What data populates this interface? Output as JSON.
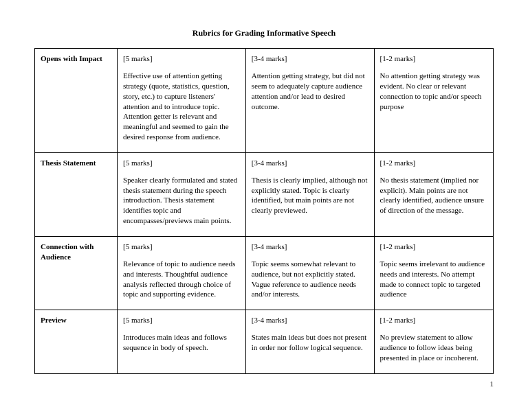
{
  "title": "Rubrics for Grading Informative Speech",
  "page_number": "1",
  "columns": {
    "high_marks": "[5 marks]",
    "mid_marks": "[3-4 marks]",
    "low_marks": "[1-2 marks]"
  },
  "rows": [
    {
      "criterion": "Opens with Impact",
      "high": "Effective use of attention getting strategy (quote, statistics, question, story, etc.) to capture listeners' attention and to introduce topic. Attention getter is relevant and meaningful and seemed to gain the desired response from audience.",
      "mid": "Attention getting strategy, but did not seem to adequately capture audience attention and/or lead to desired outcome.",
      "low": "No attention getting strategy was evident. No clear or relevant connection to topic and/or speech purpose"
    },
    {
      "criterion": "Thesis Statement",
      "high": "Speaker clearly formulated and stated thesis statement during the speech introduction. Thesis statement identifies topic and encompasses/previews main points.",
      "mid": "Thesis is clearly implied, although not explicitly stated. Topic is clearly identified, but main points are not clearly previewed.",
      "low": "No thesis statement (implied nor explicit). Main points are not clearly identified, audience unsure of direction of the message."
    },
    {
      "criterion": "Connection with Audience",
      "high": "Relevance of topic to audience needs and interests. Thoughtful audience analysis reflected through choice of topic and supporting evidence.",
      "mid": "Topic seems somewhat relevant to audience, but not explicitly stated. Vague reference to audience needs and/or interests.",
      "low": "Topic seems irrelevant to audience needs and interests. No attempt made to connect topic to targeted audience"
    },
    {
      "criterion": "Preview",
      "high": "Introduces main ideas and follows sequence in body of speech.",
      "mid": "States main ideas but does not present in order nor follow logical sequence.",
      "low": "No preview statement to allow audience to follow ideas being presented in place or incoherent."
    }
  ]
}
